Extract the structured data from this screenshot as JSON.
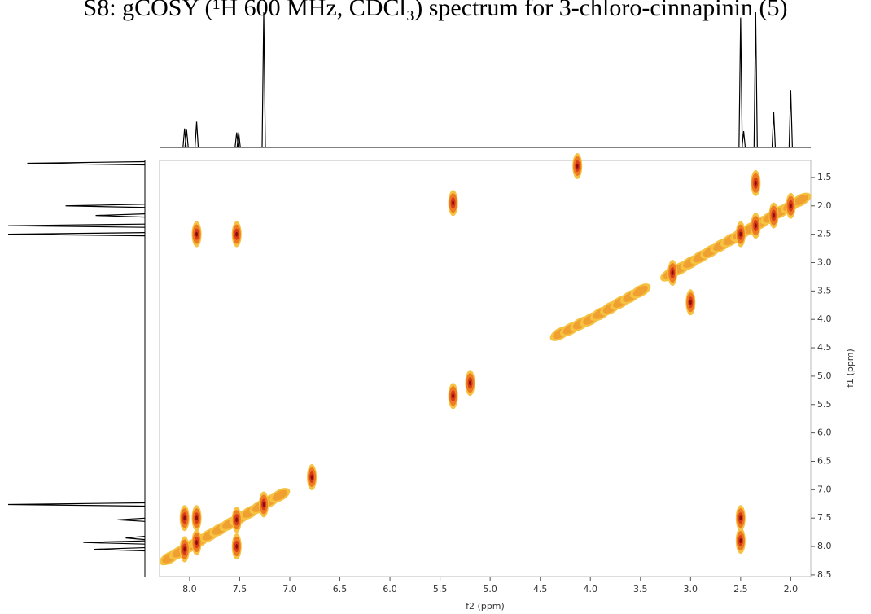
{
  "chart_data": {
    "type": "contour",
    "title": "S8: gCOSY (¹H 600 MHz, CDCl₃) spectrum for 3-chloro-cinnapinin (5)",
    "x_label": "f2 (ppm)",
    "y_label": "f1 (ppm)",
    "xlim": [
      8.3,
      1.8
    ],
    "ylim": [
      1.2,
      8.53
    ],
    "xticks": [
      {
        "value": 8,
        "label": "8.0"
      },
      7.5,
      {
        "value": 7,
        "label": "7.0"
      },
      6.5,
      {
        "value": 6,
        "label": "6.0"
      },
      5.5,
      {
        "value": 5,
        "label": "5.0"
      },
      4.5,
      {
        "value": 4,
        "label": "4.0"
      },
      3.5,
      {
        "value": 3,
        "label": "3.0"
      },
      2.5,
      {
        "value": 2,
        "label": "2.0"
      }
    ],
    "yticks": [
      1.5,
      {
        "value": 2,
        "label": "2.0"
      },
      2.5,
      {
        "value": 3,
        "label": "3.0"
      },
      3.5,
      {
        "value": 4,
        "label": "4.0"
      },
      4.5,
      {
        "value": 5,
        "label": "5.0"
      },
      5.5,
      {
        "value": 6,
        "label": "6.0"
      },
      6.5,
      {
        "value": 7,
        "label": "7.0"
      },
      7.5,
      {
        "value": 8,
        "label": "8.0"
      },
      8.5
    ],
    "peaks": {
      "f2": [
        8.05,
        7.93,
        7.53,
        7.26,
        8.05,
        7.93,
        7.53,
        7.93,
        7.53,
        2.5,
        2.5,
        2.5,
        2.35,
        2.17,
        2.0,
        2.35,
        3.18,
        5.37,
        5.2,
        3.0,
        4.13,
        5.37,
        6.78
      ],
      "f1": [
        8.05,
        7.93,
        7.53,
        7.26,
        7.5,
        7.5,
        8.0,
        2.5,
        2.5,
        7.5,
        7.9,
        2.5,
        2.35,
        2.17,
        2.0,
        1.6,
        3.18,
        5.35,
        5.12,
        3.7,
        1.3,
        1.95,
        6.78
      ]
    },
    "diagonal": {
      "f2": [
        8.2,
        8.1,
        8.0,
        7.9,
        7.8,
        7.7,
        7.6,
        7.5,
        7.4,
        7.3,
        7.2,
        7.1,
        4.3,
        4.2,
        4.1,
        4.0,
        3.9,
        3.8,
        3.7,
        3.6,
        3.5,
        3.2,
        3.1,
        3.0,
        2.9,
        2.8,
        2.7,
        2.6,
        2.5,
        2.4,
        2.3,
        2.2,
        2.1,
        2.0,
        1.9
      ],
      "f1": [
        8.2,
        8.1,
        8.0,
        7.9,
        7.8,
        7.7,
        7.6,
        7.5,
        7.4,
        7.3,
        7.2,
        7.1,
        4.25,
        4.17,
        4.08,
        4.0,
        3.9,
        3.8,
        3.7,
        3.6,
        3.5,
        3.2,
        3.1,
        3.0,
        2.9,
        2.8,
        2.7,
        2.6,
        2.5,
        2.4,
        2.3,
        2.2,
        2.1,
        2.0,
        1.9
      ]
    },
    "top_projection": {
      "ppm": [
        8.05,
        8.03,
        7.93,
        7.53,
        7.51,
        7.26,
        2.5,
        2.47,
        2.35,
        2.17,
        2.0
      ],
      "intensity": [
        14,
        13,
        19,
        11,
        11,
        100,
        96,
        12,
        100,
        26,
        42
      ]
    },
    "left_projection": {
      "ppm": [
        1.25,
        2.0,
        2.17,
        2.35,
        2.5,
        7.26,
        7.53,
        7.85,
        7.93,
        8.05
      ],
      "intensity": [
        86,
        58,
        36,
        100,
        100,
        100,
        20,
        14,
        45,
        37
      ]
    }
  }
}
